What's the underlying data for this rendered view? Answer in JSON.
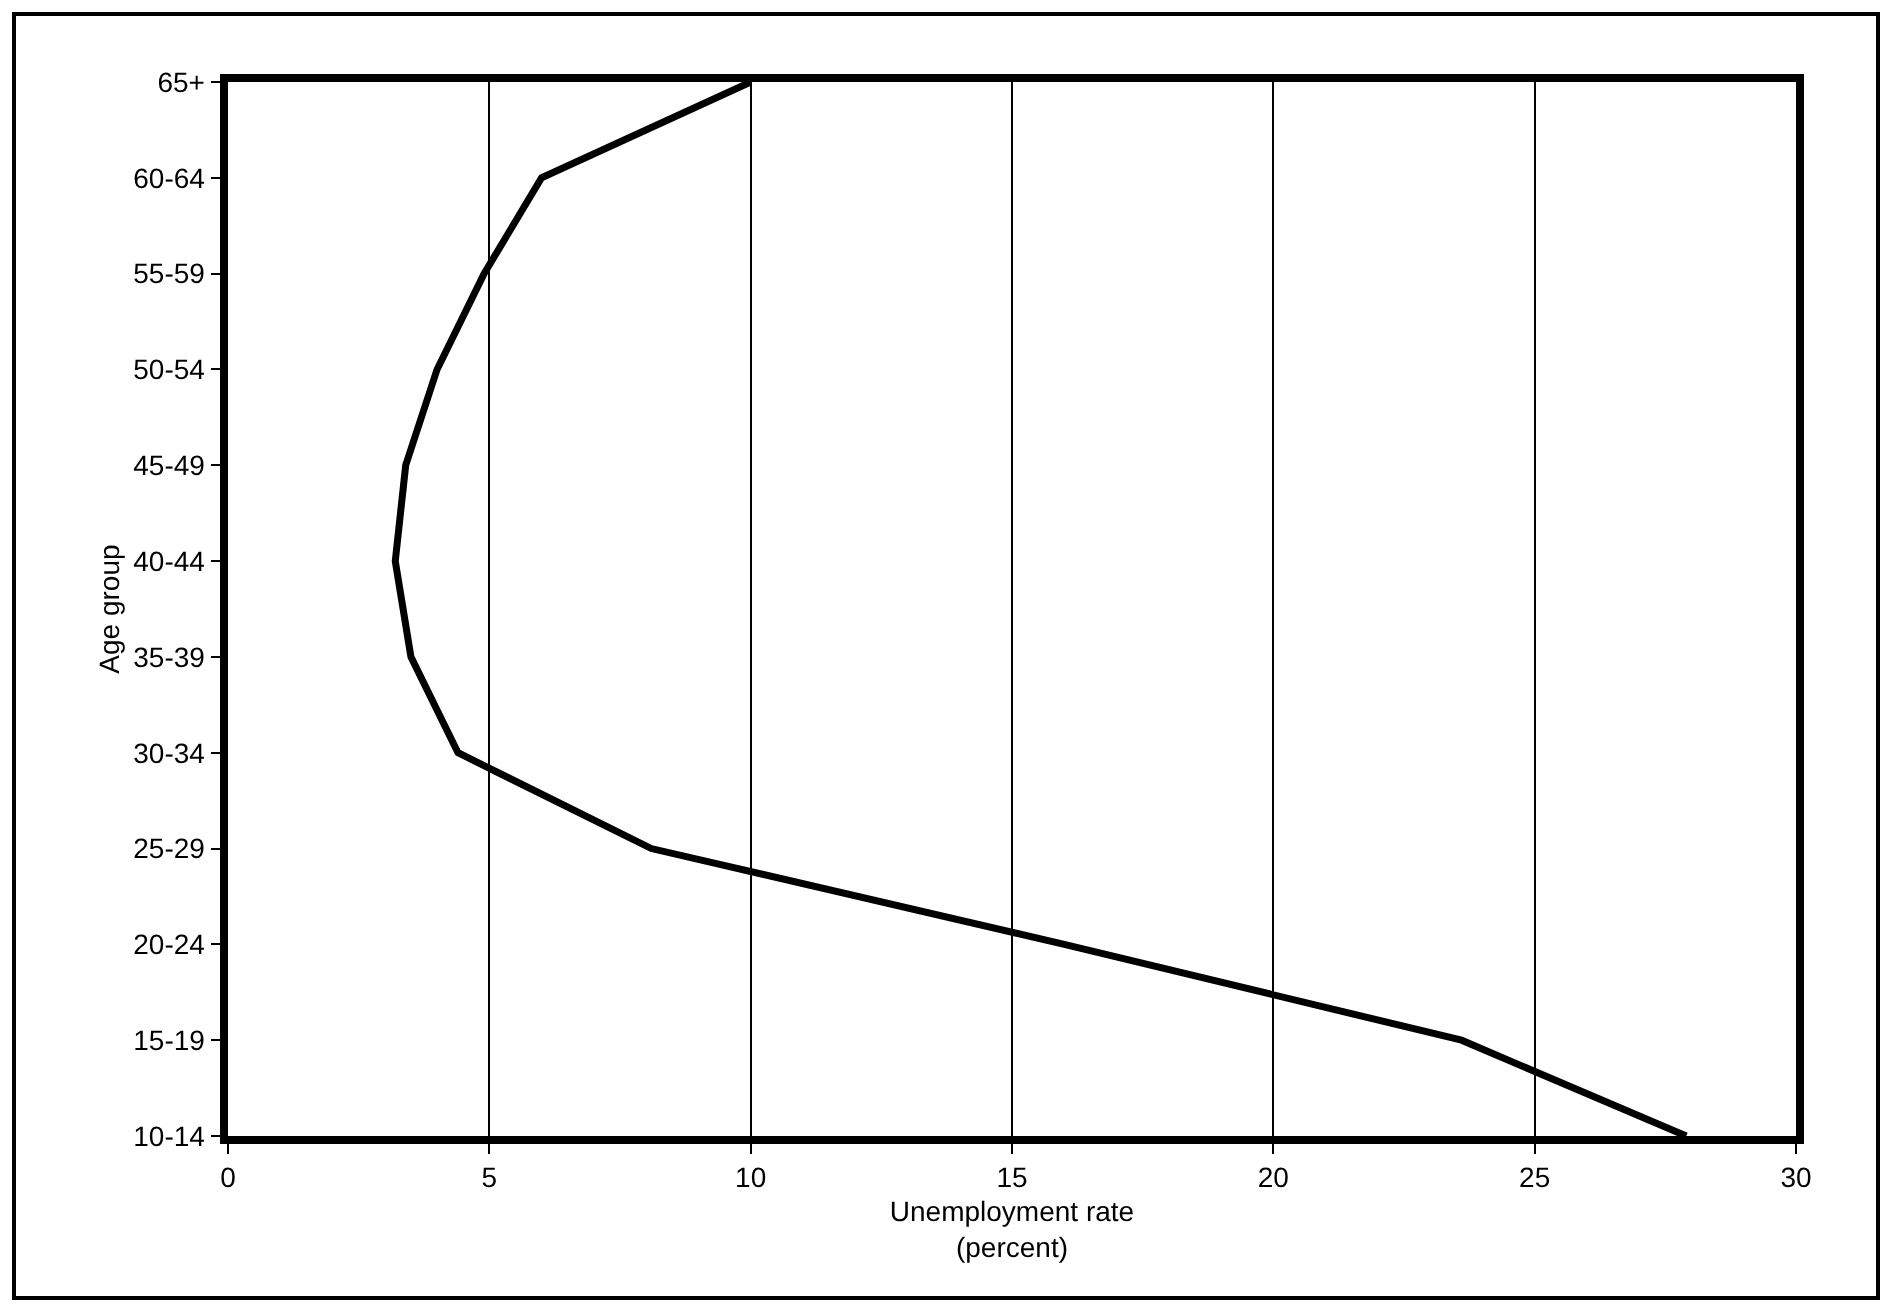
{
  "chart_data": {
    "type": "line",
    "orientation": "horizontal",
    "xlabel": "Unemployment rate\n(percent)",
    "ylabel": "Age group",
    "categories": [
      "65+",
      "60-64",
      "55-59",
      "50-54",
      "45-49",
      "40-44",
      "35-39",
      "30-34",
      "25-29",
      "20-24",
      "15-19",
      "10-14"
    ],
    "values": [
      10,
      6,
      4.9,
      4,
      3.4,
      3.2,
      3.5,
      4.4,
      8.1,
      16,
      23.6,
      27.9
    ],
    "color": "#000000",
    "xlim": [
      0,
      30
    ],
    "xticks": [
      0,
      5,
      10,
      15,
      20,
      25,
      30
    ],
    "grid": "x",
    "marker": "none",
    "line_style": "solid"
  }
}
